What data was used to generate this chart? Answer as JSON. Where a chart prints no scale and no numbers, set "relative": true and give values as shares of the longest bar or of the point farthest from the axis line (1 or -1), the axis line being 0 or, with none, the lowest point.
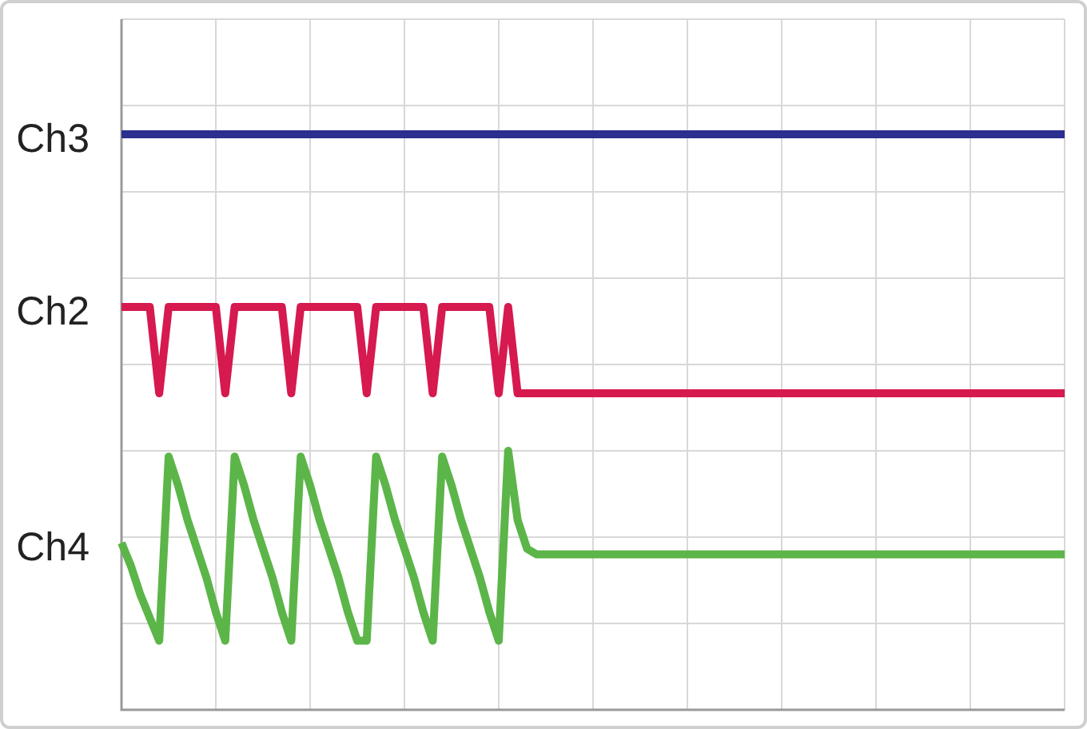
{
  "chart_data": {
    "type": "line",
    "relative": true,
    "grid": true,
    "marker": "none",
    "line_style": "solid",
    "legend": false,
    "categories": [
      null,
      null,
      null,
      null,
      null,
      null,
      null,
      null,
      null,
      null,
      null,
      null,
      null,
      null,
      null,
      null,
      null,
      null,
      null,
      null,
      null,
      null,
      null,
      null,
      null,
      null,
      null,
      null,
      null,
      null,
      null,
      null,
      null,
      null,
      null,
      null,
      null,
      null,
      null,
      null,
      null,
      null,
      null,
      null,
      null,
      null,
      null,
      null,
      null,
      null,
      null,
      null,
      null,
      null,
      null,
      null,
      null,
      null,
      null,
      null,
      null,
      null,
      null,
      null,
      null,
      null,
      null,
      null,
      null,
      null,
      null,
      null,
      null,
      null,
      null,
      null,
      null,
      null,
      null,
      null,
      null,
      null,
      null,
      null,
      null,
      null,
      null,
      null,
      null,
      null,
      null,
      null,
      null,
      null,
      null,
      null,
      null,
      null,
      null,
      null,
      null
    ],
    "series": [
      {
        "name": "Ch3",
        "color": "#2b2f8f",
        "values": [
          1,
          1,
          1,
          1,
          1,
          1,
          1,
          1,
          1,
          1,
          1,
          1,
          1,
          1,
          1,
          1,
          1,
          1,
          1,
          1,
          1,
          1,
          1,
          1,
          1,
          1,
          1,
          1,
          1,
          1,
          1,
          1,
          1,
          1,
          1,
          1,
          1,
          1,
          1,
          1,
          1,
          1,
          1,
          1,
          1,
          1,
          1,
          1,
          1,
          1,
          1,
          1,
          1,
          1,
          1,
          1,
          1,
          1,
          1,
          1,
          1,
          1,
          1,
          1,
          1,
          1,
          1,
          1,
          1,
          1,
          1,
          1,
          1,
          1,
          1,
          1,
          1,
          1,
          1,
          1,
          1,
          1,
          1,
          1,
          1,
          1,
          1,
          1,
          1,
          1,
          1,
          1,
          1,
          1,
          1,
          1,
          1,
          1,
          1,
          1,
          1
        ]
      },
      {
        "name": "Ch2",
        "color": "#d6194f",
        "values": [
          0.7,
          0.7,
          0.7,
          0.7,
          0.55,
          0.7,
          0.7,
          0.7,
          0.7,
          0.7,
          0.7,
          0.55,
          0.7,
          0.7,
          0.7,
          0.7,
          0.7,
          0.7,
          0.55,
          0.7,
          0.7,
          0.7,
          0.7,
          0.7,
          0.7,
          0.7,
          0.55,
          0.7,
          0.7,
          0.7,
          0.7,
          0.7,
          0.7,
          0.55,
          0.7,
          0.7,
          0.7,
          0.7,
          0.7,
          0.7,
          0.55,
          0.7,
          0.55,
          0.55,
          0.55,
          0.55,
          0.55,
          0.55,
          0.55,
          0.55,
          0.55,
          0.55,
          0.55,
          0.55,
          0.55,
          0.55,
          0.55,
          0.55,
          0.55,
          0.55,
          0.55,
          0.55,
          0.55,
          0.55,
          0.55,
          0.55,
          0.55,
          0.55,
          0.55,
          0.55,
          0.55,
          0.55,
          0.55,
          0.55,
          0.55,
          0.55,
          0.55,
          0.55,
          0.55,
          0.55,
          0.55,
          0.55,
          0.55,
          0.55,
          0.55,
          0.55,
          0.55,
          0.55,
          0.55,
          0.55,
          0.55,
          0.55,
          0.55,
          0.55,
          0.55,
          0.55,
          0.55,
          0.55,
          0.55,
          0.55,
          0.55
        ]
      },
      {
        "name": "Ch4",
        "color": "#5cb548",
        "values": [
          0.29,
          0.25,
          0.2,
          0.16,
          0.12,
          0.44,
          0.39,
          0.33,
          0.28,
          0.23,
          0.17,
          0.12,
          0.44,
          0.39,
          0.33,
          0.28,
          0.23,
          0.17,
          0.12,
          0.44,
          0.39,
          0.33,
          0.28,
          0.23,
          0.17,
          0.12,
          0.12,
          0.44,
          0.39,
          0.33,
          0.28,
          0.23,
          0.17,
          0.12,
          0.44,
          0.39,
          0.33,
          0.28,
          0.23,
          0.17,
          0.12,
          0.45,
          0.33,
          0.28,
          0.27,
          0.27,
          0.27,
          0.27,
          0.27,
          0.27,
          0.27,
          0.27,
          0.27,
          0.27,
          0.27,
          0.27,
          0.27,
          0.27,
          0.27,
          0.27,
          0.27,
          0.27,
          0.27,
          0.27,
          0.27,
          0.27,
          0.27,
          0.27,
          0.27,
          0.27,
          0.27,
          0.27,
          0.27,
          0.27,
          0.27,
          0.27,
          0.27,
          0.27,
          0.27,
          0.27,
          0.27,
          0.27,
          0.27,
          0.27,
          0.27,
          0.27,
          0.27,
          0.27,
          0.27,
          0.27,
          0.27,
          0.27,
          0.27,
          0.27,
          0.27,
          0.27,
          0.27,
          0.27,
          0.27,
          0.27,
          0.27
        ]
      }
    ]
  }
}
